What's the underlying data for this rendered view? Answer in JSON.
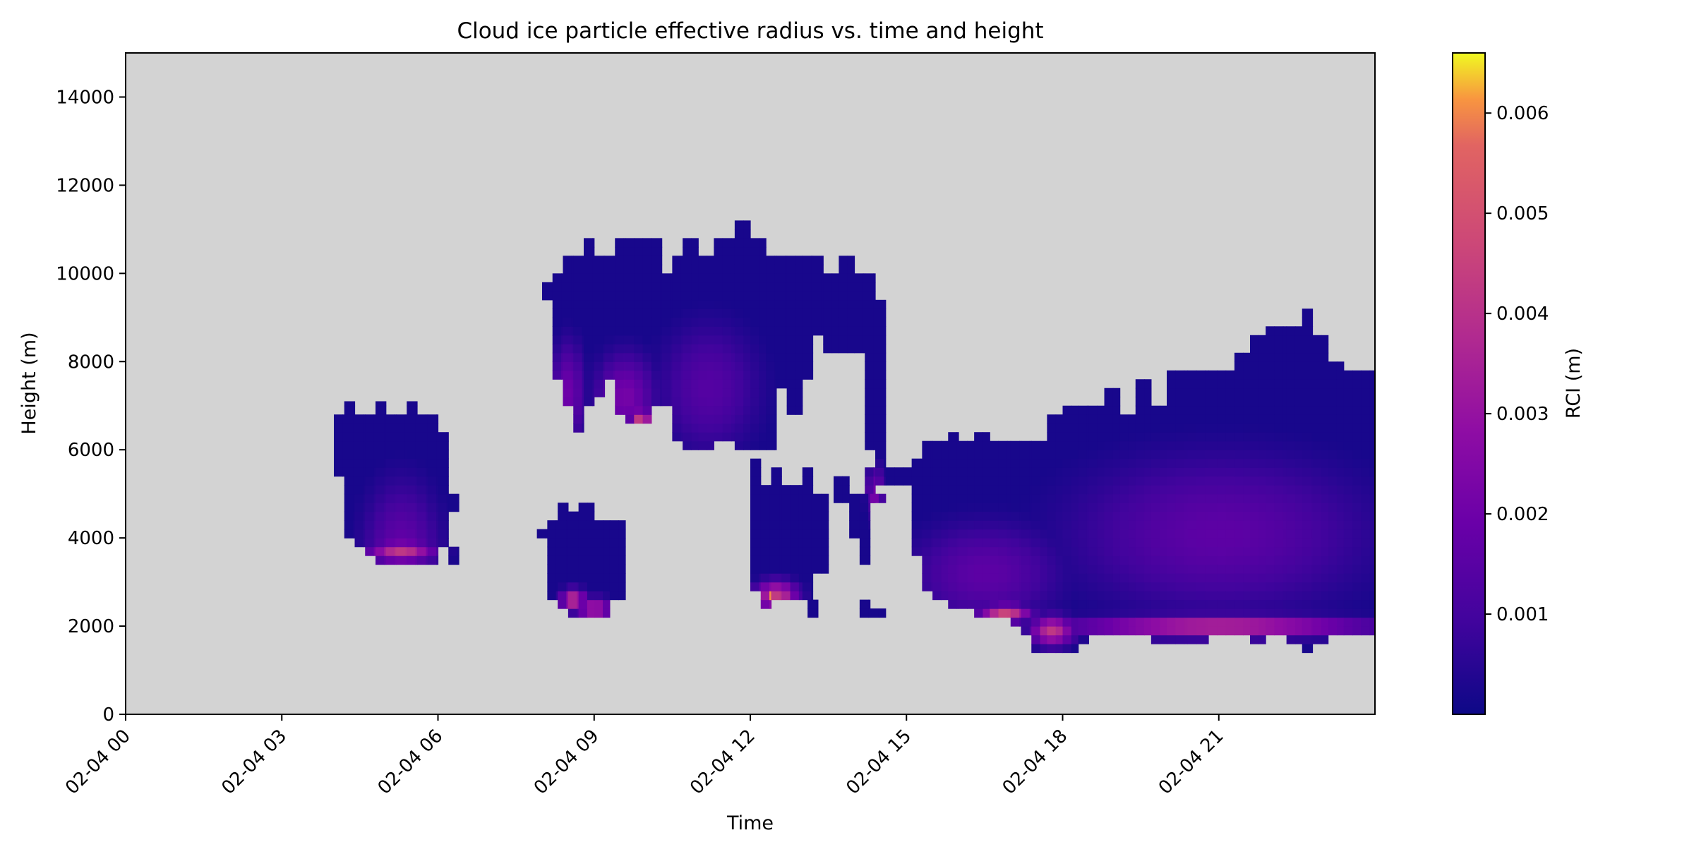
{
  "chart_data": {
    "type": "heatmap",
    "title": "Cloud ice particle effective radius vs. time and height",
    "xlabel": "Time",
    "ylabel": "Height (m)",
    "colorbar_label": "RCI (m)",
    "colormap": "plasma",
    "background_color": "#d3d3d3",
    "grid": false,
    "xlim": [
      0,
      24
    ],
    "ylim": [
      0,
      15000
    ],
    "x_time_step_hours": 0.1667,
    "height_step_m": 200,
    "color_range": [
      0,
      0.0066
    ],
    "x_ticks": [
      {
        "value": 0,
        "label": "02-04 00"
      },
      {
        "value": 3,
        "label": "02-04 03"
      },
      {
        "value": 6,
        "label": "02-04 06"
      },
      {
        "value": 9,
        "label": "02-04 09"
      },
      {
        "value": 12,
        "label": "02-04 12"
      },
      {
        "value": 15,
        "label": "02-04 15"
      },
      {
        "value": 18,
        "label": "02-04 18"
      },
      {
        "value": 21,
        "label": "02-04 21"
      }
    ],
    "y_ticks": [
      {
        "value": 0,
        "label": "0"
      },
      {
        "value": 2000,
        "label": "2000"
      },
      {
        "value": 4000,
        "label": "4000"
      },
      {
        "value": 6000,
        "label": "6000"
      },
      {
        "value": 8000,
        "label": "8000"
      },
      {
        "value": 10000,
        "label": "10000"
      },
      {
        "value": 12000,
        "label": "12000"
      },
      {
        "value": 14000,
        "label": "14000"
      }
    ],
    "colorbar_ticks": [
      {
        "value": 0.001,
        "label": "0.001"
      },
      {
        "value": 0.002,
        "label": "0.002"
      },
      {
        "value": 0.003,
        "label": "0.003"
      },
      {
        "value": 0.004,
        "label": "0.004"
      },
      {
        "value": 0.005,
        "label": "0.005"
      },
      {
        "value": 0.006,
        "label": "0.006"
      }
    ],
    "cloud_cores": [
      {
        "t": 5.3,
        "h": 3600,
        "rt": 0.9,
        "rh": 2000,
        "v": 0.0018
      },
      {
        "t": 5.3,
        "h": 3700,
        "rt": 0.8,
        "rh": 300,
        "v": 0.0042
      },
      {
        "t": 9.0,
        "h": 2400,
        "rt": 0.4,
        "rh": 300,
        "v": 0.0035
      },
      {
        "t": 8.6,
        "h": 2600,
        "rt": 0.3,
        "rh": 300,
        "v": 0.0042
      },
      {
        "t": 8.5,
        "h": 7300,
        "rt": 0.4,
        "rh": 1400,
        "v": 0.002
      },
      {
        "t": 9.6,
        "h": 7200,
        "rt": 0.7,
        "rh": 1200,
        "v": 0.0022
      },
      {
        "t": 9.9,
        "h": 6700,
        "rt": 0.25,
        "rh": 300,
        "v": 0.0045
      },
      {
        "t": 11.2,
        "h": 7400,
        "rt": 1.2,
        "rh": 1800,
        "v": 0.0014
      },
      {
        "t": 12.5,
        "h": 2700,
        "rt": 0.5,
        "rh": 400,
        "v": 0.0043
      },
      {
        "t": 12.4,
        "h": 2700,
        "rt": 0.15,
        "rh": 200,
        "v": 0.0062
      },
      {
        "t": 16.5,
        "h": 3200,
        "rt": 1.8,
        "rh": 1400,
        "v": 0.0016
      },
      {
        "t": 16.9,
        "h": 2300,
        "rt": 0.6,
        "rh": 250,
        "v": 0.0046
      },
      {
        "t": 17.8,
        "h": 1900,
        "rt": 0.5,
        "rh": 400,
        "v": 0.0042
      },
      {
        "t": 21.0,
        "h": 4100,
        "rt": 3.5,
        "rh": 2200,
        "v": 0.0016
      },
      {
        "t": 21.0,
        "h": 2000,
        "rt": 3.6,
        "rh": 300,
        "v": 0.004
      },
      {
        "t": 14.4,
        "h": 5000,
        "rt": 0.2,
        "rh": 800,
        "v": 0.0022
      }
    ],
    "cloud_regions": [
      {
        "t0": 4.0,
        "t1": 4.2,
        "segments": [
          [
            5400,
            6800
          ]
        ]
      },
      {
        "t0": 4.2,
        "t1": 4.4,
        "segments": [
          [
            4000,
            7100
          ]
        ]
      },
      {
        "t0": 4.4,
        "t1": 4.6,
        "segments": [
          [
            3800,
            6800
          ]
        ]
      },
      {
        "t0": 4.6,
        "t1": 4.8,
        "segments": [
          [
            3600,
            6800
          ]
        ]
      },
      {
        "t0": 4.8,
        "t1": 5.0,
        "segments": [
          [
            3400,
            7100
          ]
        ]
      },
      {
        "t0": 5.0,
        "t1": 5.2,
        "segments": [
          [
            3400,
            6800
          ]
        ]
      },
      {
        "t0": 5.2,
        "t1": 5.4,
        "segments": [
          [
            3400,
            6800
          ]
        ]
      },
      {
        "t0": 5.4,
        "t1": 5.6,
        "segments": [
          [
            3400,
            7100
          ]
        ]
      },
      {
        "t0": 5.6,
        "t1": 5.8,
        "segments": [
          [
            3400,
            6800
          ]
        ]
      },
      {
        "t0": 5.8,
        "t1": 6.0,
        "segments": [
          [
            3400,
            6800
          ]
        ]
      },
      {
        "t0": 6.0,
        "t1": 6.2,
        "segments": [
          [
            3800,
            6400
          ]
        ]
      },
      {
        "t0": 6.2,
        "t1": 6.4,
        "segments": [
          [
            3400,
            3800
          ],
          [
            4600,
            5000
          ]
        ]
      },
      {
        "t0": 7.9,
        "t1": 8.1,
        "segments": [
          [
            4000,
            4200
          ]
        ]
      },
      {
        "t0": 8.1,
        "t1": 8.3,
        "segments": [
          [
            2600,
            4400
          ]
        ]
      },
      {
        "t0": 8.3,
        "t1": 8.5,
        "segments": [
          [
            2400,
            4800
          ]
        ]
      },
      {
        "t0": 8.5,
        "t1": 8.7,
        "segments": [
          [
            2200,
            4600
          ]
        ]
      },
      {
        "t0": 8.7,
        "t1": 9.0,
        "segments": [
          [
            2200,
            4800
          ]
        ]
      },
      {
        "t0": 9.0,
        "t1": 9.3,
        "segments": [
          [
            2200,
            4400
          ]
        ]
      },
      {
        "t0": 9.3,
        "t1": 9.6,
        "segments": [
          [
            2600,
            4400
          ]
        ]
      },
      {
        "t0": 8.0,
        "t1": 8.2,
        "segments": [
          [
            9400,
            9800
          ]
        ]
      },
      {
        "t0": 8.2,
        "t1": 8.4,
        "segments": [
          [
            7600,
            10000
          ]
        ]
      },
      {
        "t0": 8.4,
        "t1": 8.6,
        "segments": [
          [
            7000,
            10400
          ]
        ]
      },
      {
        "t0": 8.6,
        "t1": 8.8,
        "segments": [
          [
            6400,
            10400
          ]
        ]
      },
      {
        "t0": 8.8,
        "t1": 9.0,
        "segments": [
          [
            7000,
            10800
          ]
        ]
      },
      {
        "t0": 9.0,
        "t1": 9.2,
        "segments": [
          [
            7200,
            10400
          ]
        ]
      },
      {
        "t0": 9.2,
        "t1": 9.4,
        "segments": [
          [
            7600,
            10400
          ]
        ]
      },
      {
        "t0": 9.4,
        "t1": 9.6,
        "segments": [
          [
            6800,
            10800
          ]
        ]
      },
      {
        "t0": 9.6,
        "t1": 10.1,
        "segments": [
          [
            6600,
            10800
          ]
        ]
      },
      {
        "t0": 10.1,
        "t1": 10.3,
        "segments": [
          [
            7000,
            10800
          ]
        ]
      },
      {
        "t0": 10.3,
        "t1": 10.5,
        "segments": [
          [
            7000,
            10000
          ]
        ]
      },
      {
        "t0": 10.5,
        "t1": 10.7,
        "segments": [
          [
            6200,
            10400
          ]
        ]
      },
      {
        "t0": 10.7,
        "t1": 11.0,
        "segments": [
          [
            6000,
            10800
          ]
        ]
      },
      {
        "t0": 11.0,
        "t1": 11.3,
        "segments": [
          [
            6000,
            10400
          ]
        ]
      },
      {
        "t0": 11.3,
        "t1": 11.7,
        "segments": [
          [
            6200,
            10800
          ]
        ]
      },
      {
        "t0": 11.7,
        "t1": 12.0,
        "segments": [
          [
            6000,
            11200
          ]
        ]
      },
      {
        "t0": 12.0,
        "t1": 12.3,
        "segments": [
          [
            6000,
            10800
          ]
        ]
      },
      {
        "t0": 12.3,
        "t1": 12.5,
        "segments": [
          [
            6000,
            10400
          ]
        ]
      },
      {
        "t0": 12.5,
        "t1": 12.7,
        "segments": [
          [
            7400,
            10400
          ]
        ]
      },
      {
        "t0": 12.7,
        "t1": 13.0,
        "segments": [
          [
            6800,
            10400
          ]
        ]
      },
      {
        "t0": 13.0,
        "t1": 13.2,
        "segments": [
          [
            7600,
            10400
          ]
        ]
      },
      {
        "t0": 13.2,
        "t1": 13.4,
        "segments": [
          [
            8600,
            10400
          ]
        ]
      },
      {
        "t0": 13.4,
        "t1": 13.7,
        "segments": [
          [
            8200,
            10000
          ]
        ]
      },
      {
        "t0": 13.7,
        "t1": 14.0,
        "segments": [
          [
            8200,
            10400
          ]
        ]
      },
      {
        "t0": 14.0,
        "t1": 14.2,
        "segments": [
          [
            8200,
            10000
          ]
        ]
      },
      {
        "t0": 14.2,
        "t1": 14.4,
        "segments": [
          [
            6000,
            10000
          ],
          [
            4800,
            5600
          ]
        ]
      },
      {
        "t0": 14.4,
        "t1": 14.6,
        "segments": [
          [
            5200,
            9400
          ]
        ]
      },
      {
        "t0": 12.0,
        "t1": 12.2,
        "segments": [
          [
            2800,
            5800
          ]
        ]
      },
      {
        "t0": 12.2,
        "t1": 12.4,
        "segments": [
          [
            2400,
            5200
          ]
        ]
      },
      {
        "t0": 12.4,
        "t1": 12.6,
        "segments": [
          [
            2600,
            5600
          ]
        ]
      },
      {
        "t0": 12.6,
        "t1": 13.0,
        "segments": [
          [
            2600,
            5200
          ]
        ]
      },
      {
        "t0": 13.0,
        "t1": 13.2,
        "segments": [
          [
            2600,
            5600
          ]
        ]
      },
      {
        "t0": 13.2,
        "t1": 13.5,
        "segments": [
          [
            3200,
            5000
          ]
        ]
      },
      {
        "t0": 13.1,
        "t1": 13.3,
        "segments": [
          [
            2200,
            2600
          ]
        ]
      },
      {
        "t0": 13.6,
        "t1": 13.9,
        "segments": [
          [
            4800,
            5400
          ]
        ]
      },
      {
        "t0": 13.9,
        "t1": 14.1,
        "segments": [
          [
            4000,
            5000
          ]
        ]
      },
      {
        "t0": 14.1,
        "t1": 14.3,
        "segments": [
          [
            3400,
            5000
          ],
          [
            2200,
            2600
          ]
        ]
      },
      {
        "t0": 14.3,
        "t1": 14.6,
        "segments": [
          [
            4800,
            5000
          ],
          [
            2200,
            2400
          ]
        ]
      },
      {
        "t0": 14.6,
        "t1": 15.1,
        "segments": [
          [
            5200,
            5600
          ]
        ]
      },
      {
        "t0": 15.1,
        "t1": 15.3,
        "segments": [
          [
            3600,
            5800
          ]
        ]
      },
      {
        "t0": 15.3,
        "t1": 15.5,
        "segments": [
          [
            2800,
            6200
          ]
        ]
      },
      {
        "t0": 15.5,
        "t1": 15.8,
        "segments": [
          [
            2600,
            6200
          ]
        ]
      },
      {
        "t0": 15.8,
        "t1": 16.0,
        "segments": [
          [
            2400,
            6400
          ]
        ]
      },
      {
        "t0": 16.0,
        "t1": 16.3,
        "segments": [
          [
            2400,
            6200
          ]
        ]
      },
      {
        "t0": 16.3,
        "t1": 16.6,
        "segments": [
          [
            2200,
            6400
          ]
        ]
      },
      {
        "t0": 16.6,
        "t1": 17.0,
        "segments": [
          [
            2200,
            6200
          ]
        ]
      },
      {
        "t0": 17.0,
        "t1": 17.2,
        "segments": [
          [
            2000,
            6200
          ]
        ]
      },
      {
        "t0": 17.2,
        "t1": 17.4,
        "segments": [
          [
            1800,
            6200
          ]
        ]
      },
      {
        "t0": 17.4,
        "t1": 17.7,
        "segments": [
          [
            1400,
            6200
          ]
        ]
      },
      {
        "t0": 17.7,
        "t1": 18.0,
        "segments": [
          [
            1400,
            6800
          ]
        ]
      },
      {
        "t0": 18.0,
        "t1": 18.3,
        "segments": [
          [
            1400,
            7000
          ]
        ]
      },
      {
        "t0": 18.3,
        "t1": 18.5,
        "segments": [
          [
            1600,
            7000
          ]
        ]
      },
      {
        "t0": 18.5,
        "t1": 18.8,
        "segments": [
          [
            1800,
            7000
          ]
        ]
      },
      {
        "t0": 18.8,
        "t1": 19.1,
        "segments": [
          [
            1800,
            7400
          ]
        ]
      },
      {
        "t0": 19.1,
        "t1": 19.4,
        "segments": [
          [
            1800,
            6800
          ]
        ]
      },
      {
        "t0": 19.4,
        "t1": 19.7,
        "segments": [
          [
            1800,
            7600
          ]
        ]
      },
      {
        "t0": 19.7,
        "t1": 20.0,
        "segments": [
          [
            1600,
            7000
          ]
        ]
      },
      {
        "t0": 20.0,
        "t1": 20.4,
        "segments": [
          [
            1600,
            7800
          ]
        ]
      },
      {
        "t0": 20.4,
        "t1": 20.8,
        "segments": [
          [
            1600,
            7800
          ]
        ]
      },
      {
        "t0": 20.8,
        "t1": 21.3,
        "segments": [
          [
            1800,
            7800
          ]
        ]
      },
      {
        "t0": 21.3,
        "t1": 21.6,
        "segments": [
          [
            1800,
            8200
          ]
        ]
      },
      {
        "t0": 21.6,
        "t1": 21.9,
        "segments": [
          [
            1600,
            8600
          ]
        ]
      },
      {
        "t0": 21.9,
        "t1": 22.3,
        "segments": [
          [
            1800,
            8800
          ]
        ]
      },
      {
        "t0": 22.3,
        "t1": 22.6,
        "segments": [
          [
            1600,
            8800
          ]
        ]
      },
      {
        "t0": 22.6,
        "t1": 22.8,
        "segments": [
          [
            1400,
            9200
          ]
        ]
      },
      {
        "t0": 22.8,
        "t1": 23.1,
        "segments": [
          [
            1600,
            8600
          ]
        ]
      },
      {
        "t0": 23.1,
        "t1": 23.4,
        "segments": [
          [
            1800,
            8000
          ]
        ]
      },
      {
        "t0": 23.4,
        "t1": 24.0,
        "segments": [
          [
            1800,
            7800
          ]
        ]
      }
    ]
  }
}
